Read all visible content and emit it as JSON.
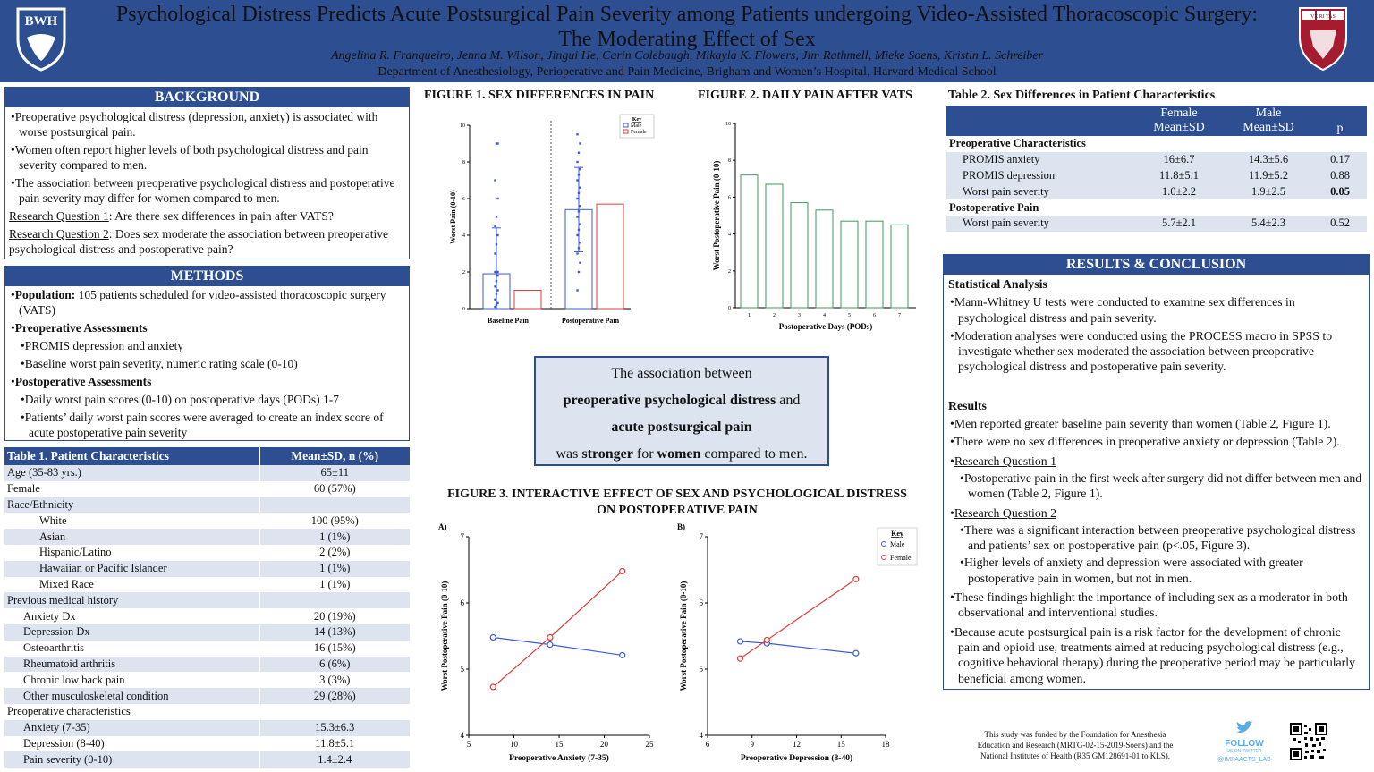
{
  "header": {
    "title_line1": "Psychological Distress Predicts Acute Postsurgical Pain Severity among Patients undergoing Video-Assisted Thoracoscopic Surgery:",
    "title_line2": "The Moderating Effect of Sex",
    "authors": "Angelina R. Franqueiro, Jenna M. Wilson, Jingui He, Carin Colebaugh, Mikayla K. Flowers, Jim Rathmell, Mieke Soens, Kristin L. Schreiber",
    "department": "Department of Anesthesiology, Perioperative and Pain Medicine, Brigham and Women’s Hospital, Harvard Medical School",
    "left_logo_text": "BWH",
    "right_logo_text": "VE RI TAS"
  },
  "background": {
    "heading": "BACKGROUND",
    "bullets": [
      "Preoperative psychological distress (depression, anxiety) is associated with worse postsurgical pain.",
      "Women often report higher levels of both psychological distress and pain severity compared to men.",
      "The association between preoperative psychological distress and postoperative pain severity may differ for women compared to men."
    ],
    "rq1_label": "Research Question 1",
    "rq1_text": ": Are there sex differences in pain after VATS?",
    "rq2_label": "Research Question 2",
    "rq2_text": ": Does sex moderate the association between preoperative psychological distress and postoperative pain?"
  },
  "methods": {
    "heading": "METHODS",
    "population_label": "Population:",
    "population_text": " 105 patients scheduled for video-assisted thoracoscopic surgery (VATS)",
    "preop_label": "Preoperative Assessments",
    "preop_items": [
      "PROMIS depression and anxiety",
      "Baseline worst pain severity, numeric rating scale (0-10)"
    ],
    "postop_label": "Postoperative Assessments",
    "postop_items": [
      "Daily worst pain scores (0-10) on postoperative days (PODs) 1-7",
      "Patients’ daily worst pain scores were averaged to create an index score of acute postoperative pain severity"
    ]
  },
  "table1": {
    "title": "Table 1. Patient Characteristics",
    "col": "Mean±SD, n (%)",
    "rows": [
      {
        "label": "Age (35-83 yrs.)",
        "value": "65±11",
        "indent": 0
      },
      {
        "label": "Female",
        "value": "60 (57%)",
        "indent": 0
      },
      {
        "label": "Race/Ethnicity",
        "value": "",
        "indent": 0
      },
      {
        "label": "White",
        "value": "100 (95%)",
        "indent": 2
      },
      {
        "label": "Asian",
        "value": "1 (1%)",
        "indent": 2
      },
      {
        "label": "Hispanic/Latino",
        "value": "2 (2%)",
        "indent": 2
      },
      {
        "label": "Hawaiian or Pacific Islander",
        "value": "1 (1%)",
        "indent": 2
      },
      {
        "label": "Mixed Race",
        "value": "1 (1%)",
        "indent": 2
      },
      {
        "label": "Previous medical history",
        "value": "",
        "indent": 0
      },
      {
        "label": "Anxiety Dx",
        "value": "20 (19%)",
        "indent": 1
      },
      {
        "label": "Depression Dx",
        "value": "14 (13%)",
        "indent": 1
      },
      {
        "label": "Osteoarthritis",
        "value": "16 (15%)",
        "indent": 1
      },
      {
        "label": "Rheumatoid arthritis",
        "value": "6 (6%)",
        "indent": 1
      },
      {
        "label": "Chronic low back pain",
        "value": "3 (3%)",
        "indent": 1
      },
      {
        "label": "Other musculoskeletal condition",
        "value": "29 (28%)",
        "indent": 1
      },
      {
        "label": "Preoperative characteristics",
        "value": "",
        "indent": 0
      },
      {
        "label": "Anxiety (7-35)",
        "value": "15.3±6.3",
        "indent": 1
      },
      {
        "label": "Depression (8-40)",
        "value": "11.8±5.1",
        "indent": 1
      },
      {
        "label": "Pain severity (0-10)",
        "value": "1.4±2.4",
        "indent": 1
      }
    ]
  },
  "fig1": {
    "title": "FIGURE 1. SEX DIFFERENCES IN PAIN",
    "ylabel": "Worst Pain (0-10)",
    "key_title": "Key",
    "key_male": "Male",
    "key_female": "Female"
  },
  "fig2": {
    "title": "FIGURE 2. DAILY PAIN AFTER VATS",
    "ylabel": "Worst Postoperative Pain (0-10)",
    "xlabel": "Postoperative Days (PODs)"
  },
  "callout": {
    "line1": "The association between",
    "line2_bold": "preoperative psychological distress",
    "line2_rest": " and",
    "line3_bold": "acute postsurgical pain",
    "line4_pre": "was ",
    "line4_b1": "stronger",
    "line4_mid": " for ",
    "line4_b2": "women",
    "line4_post": " compared to men."
  },
  "fig3": {
    "title_line1": "FIGURE 3. INTERACTIVE EFFECT OF SEX AND PSYCHOLOGICAL DISTRESS",
    "title_line2": "ON POSTOPERATIVE PAIN",
    "panel_a": "A)",
    "panel_b": "B)",
    "ylabel": "Worst Postoperative Pain (0-10)",
    "xlabel_a": "Preoperative Anxiety (7-35)",
    "xlabel_b": "Preoperative Depression (8-40)",
    "key_title": "Key",
    "key_male": "Male",
    "key_female": "Female"
  },
  "table2": {
    "title": "Table 2. Sex Differences in Patient Characteristics",
    "col_female": "Female",
    "col_male": "Male",
    "col_stat": "Mean±SD",
    "col_p": "p",
    "sec1": "Preoperative Characteristics",
    "sec2": "Postoperative Pain",
    "rows_pre": [
      {
        "label": "PROMIS anxiety",
        "female": "16±6.7",
        "male": "14.3±5.6",
        "p": "0.17"
      },
      {
        "label": "PROMIS depression",
        "female": "11.8±5.1",
        "male": "11.9±5.2",
        "p": "0.88"
      },
      {
        "label": "Worst pain severity",
        "female": "1.0±2.2",
        "male": "1.9±2.5",
        "p": "0.05"
      }
    ],
    "rows_post": [
      {
        "label": "Worst pain severity",
        "female": "5.7±2.1",
        "male": "5.4±2.3",
        "p": "0.52"
      }
    ]
  },
  "results": {
    "heading": "RESULTS & CONCLUSION",
    "stat_heading": "Statistical Analysis",
    "stat_bullets": [
      "Mann-Whitney U tests were conducted to examine sex differences in psychological distress and pain severity.",
      "Moderation analyses were conducted using the PROCESS macro in SPSS to investigate whether sex moderated the association between preoperative psychological distress and postoperative pain severity."
    ],
    "res_heading": "Results",
    "res_bullets": [
      "Men reported greater baseline pain severity than women (Table 2, Figure 1).",
      "There were no sex differences in preoperative anxiety or depression (Table 2)."
    ],
    "rq1": "Research Question 1",
    "rq1_bullets": [
      "Postoperative pain in the first week after surgery did not differ between men and women (Table 2, Figure 1)."
    ],
    "rq2": "Research Question 2",
    "rq2_bullets": [
      "There was a significant interaction between preoperative psychological distress and patients’ sex on postoperative pain (p<.05, Figure 3).",
      "Higher levels of anxiety and depression were associated with greater postoperative pain in women, but not in men."
    ],
    "conclusion_bullets": [
      "These findings highlight the importance of including sex as a moderator in both observational and interventional studies.",
      "Because acute postsurgical pain is a risk factor for the development of chronic pain and opioid use, treatments aimed at reducing psychological distress (e.g., cognitive behavioral therapy) during the preoperative period may be particularly beneficial among women."
    ]
  },
  "footer": {
    "funding": "This study was funded by the Foundation for Anesthesia Education and Research (MRTG-02-15-2019-Soens) and the National Institutes of Health (R35 GM128691-01 to KLS).",
    "follow": "FOLLOW",
    "follow_sub": "US ON TWITTER",
    "handle": "@IMPAACTS_LAB"
  },
  "colors": {
    "primary": "#2d4f91",
    "light": "#dde3ef",
    "male": "#3a5bd9",
    "female": "#e23b3b",
    "green": "#3f9a5a"
  },
  "chart_data": [
    {
      "type": "bar",
      "id": "fig1",
      "categories": [
        "Baseline Pain",
        "Postoperative Pain"
      ],
      "series": [
        {
          "name": "Male",
          "values": [
            1.9,
            5.4
          ],
          "sd": [
            2.5,
            2.3
          ]
        },
        {
          "name": "Female",
          "values": [
            1.0,
            5.7
          ]
        }
      ],
      "ylim": [
        0,
        10
      ],
      "yticks": [
        0,
        2,
        4,
        6,
        8,
        10
      ],
      "male_points": [
        [
          0,
          0.1
        ],
        [
          0,
          0.2
        ],
        [
          0,
          0.3
        ],
        [
          0,
          0.5
        ],
        [
          0,
          0.8
        ],
        [
          0,
          1.0
        ],
        [
          0,
          1.2
        ],
        [
          0,
          1.5
        ],
        [
          0,
          1.8
        ],
        [
          0,
          2.0
        ],
        [
          0,
          2.0
        ],
        [
          0,
          2.0
        ],
        [
          0,
          3.0
        ],
        [
          0,
          3.5
        ],
        [
          0,
          4.0
        ],
        [
          0,
          4.5
        ],
        [
          0,
          5.0
        ],
        [
          0,
          6.0
        ],
        [
          0,
          7.0
        ],
        [
          0,
          9.0
        ],
        [
          0,
          9.0
        ],
        [
          1,
          1.0
        ],
        [
          1,
          2.0
        ],
        [
          1,
          2.5
        ],
        [
          1,
          3.0
        ],
        [
          1,
          3.3
        ],
        [
          1,
          3.6
        ],
        [
          1,
          4.0
        ],
        [
          1,
          4.3
        ],
        [
          1,
          4.6
        ],
        [
          1,
          5.0
        ],
        [
          1,
          5.3
        ],
        [
          1,
          5.6
        ],
        [
          1,
          6.0
        ],
        [
          1,
          6.3
        ],
        [
          1,
          6.6
        ],
        [
          1,
          7.0
        ],
        [
          1,
          7.3
        ],
        [
          1,
          7.6
        ],
        [
          1,
          8.0
        ],
        [
          1,
          8.5
        ],
        [
          1,
          9.0
        ],
        [
          1,
          9.5
        ]
      ]
    },
    {
      "type": "bar",
      "id": "fig2",
      "categories": [
        "1",
        "2",
        "3",
        "4",
        "5",
        "6",
        "7"
      ],
      "values": [
        7.2,
        6.7,
        5.7,
        5.3,
        4.7,
        4.7,
        4.5
      ],
      "xlabel": "Postoperative Days (PODs)",
      "ylabel": "Worst Postoperative Pain (0-10)",
      "ylim": [
        0,
        10
      ],
      "yticks": [
        0,
        2,
        4,
        6,
        8,
        10
      ]
    },
    {
      "type": "line",
      "id": "fig3a",
      "xlabel": "Preoperative Anxiety (7-35)",
      "ylabel": "Worst Postoperative Pain (0-10)",
      "xlim": [
        5,
        25
      ],
      "ylim": [
        4,
        7
      ],
      "xticks": [
        5,
        10,
        15,
        20,
        25
      ],
      "yticks": [
        4,
        5,
        6,
        7
      ],
      "series": [
        {
          "name": "Male",
          "x": [
            7.7,
            14,
            22
          ],
          "y": [
            5.48,
            5.37,
            5.21
          ]
        },
        {
          "name": "Female",
          "x": [
            7.7,
            14,
            22
          ],
          "y": [
            4.73,
            5.48,
            6.48
          ]
        }
      ]
    },
    {
      "type": "line",
      "id": "fig3b",
      "xlabel": "Preoperative Depression (8-40)",
      "ylabel": "Worst Postoperative Pain (0-10)",
      "xlim": [
        6,
        18
      ],
      "ylim": [
        4,
        7
      ],
      "xticks": [
        6,
        9,
        12,
        15,
        18
      ],
      "yticks": [
        4,
        5,
        6,
        7
      ],
      "series": [
        {
          "name": "Male",
          "x": [
            8.2,
            10,
            16
          ],
          "y": [
            5.42,
            5.39,
            5.24
          ]
        },
        {
          "name": "Female",
          "x": [
            8.2,
            10,
            16
          ],
          "y": [
            5.16,
            5.44,
            6.36
          ]
        }
      ]
    }
  ]
}
